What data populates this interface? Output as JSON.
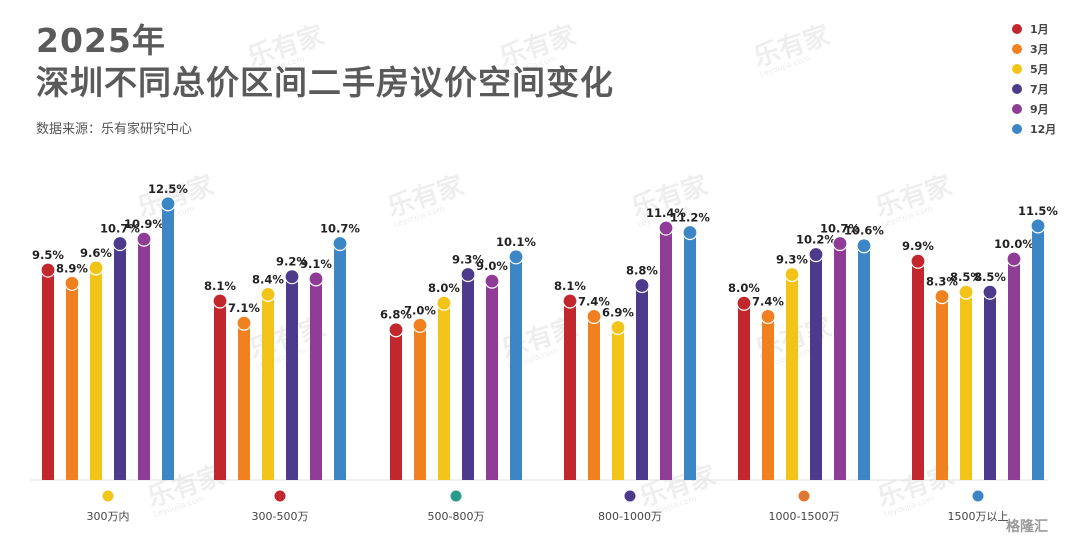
{
  "header": {
    "title_line1": "2025年",
    "title_line2": "深圳不同总价区间二手房议价空间变化",
    "source": "数据来源：乐有家研究中心"
  },
  "watermark": {
    "text": "乐有家",
    "subtext": "Leyoujia.com"
  },
  "footer": {
    "brand": "格隆汇"
  },
  "colors": {
    "1月": "#c1272d",
    "3月": "#f08020",
    "5月": "#f2c418",
    "7月": "#4c3a8c",
    "9月": "#8e3c96",
    "12月": "#3d86c6"
  },
  "chart_data": {
    "type": "bar",
    "unit": "%",
    "categories": [
      "300万内",
      "300-500万",
      "500-800万",
      "800-1000万",
      "1000-1500万",
      "1500万以上"
    ],
    "category_markers": [
      "#f2c418",
      "#c1272d",
      "#2a9a8a",
      "#4c3a8c",
      "#e07830",
      "#3d86c6"
    ],
    "series": [
      {
        "name": "1月",
        "color": "#c1272d",
        "values": [
          9.5,
          8.1,
          6.8,
          8.1,
          8.0,
          9.9
        ]
      },
      {
        "name": "3月",
        "color": "#f08020",
        "values": [
          8.9,
          7.1,
          7.0,
          7.4,
          7.4,
          8.3
        ]
      },
      {
        "name": "5月",
        "color": "#f2c418",
        "values": [
          9.6,
          8.4,
          8.0,
          6.9,
          9.3,
          8.5
        ]
      },
      {
        "name": "7月",
        "color": "#4c3a8c",
        "values": [
          10.7,
          9.2,
          9.3,
          8.8,
          10.2,
          8.5
        ]
      },
      {
        "name": "9月",
        "color": "#8e3c96",
        "values": [
          10.9,
          9.1,
          9.0,
          11.4,
          10.7,
          10.0
        ]
      },
      {
        "name": "12月",
        "color": "#3d86c6",
        "values": [
          12.5,
          10.7,
          10.1,
          11.2,
          10.6,
          11.5
        ]
      }
    ],
    "legend_position": "top-right",
    "grid": false
  }
}
